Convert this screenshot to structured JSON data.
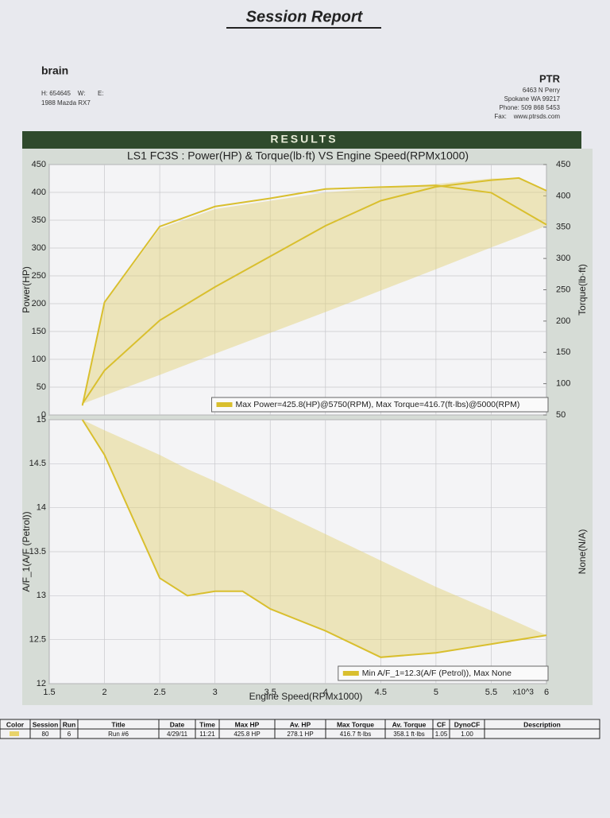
{
  "title": "Session Report",
  "customer": {
    "name": "brain",
    "contact": "H: 654645    W:       E:",
    "vehicle": "1988 Mazda RX7"
  },
  "shop": {
    "name": "PTR",
    "address": "6463 N Perry",
    "city": "Spokane WA 99217",
    "phone": "Phone: 509 868 5453",
    "fax": "Fax:    www.ptrsds.com"
  },
  "banner": "RESULTS",
  "chart_data": [
    {
      "type": "line",
      "title": "LS1 FC3S : Power(HP) & Torque(lb·ft) VS Engine Speed(RPMx1000)",
      "y_label": "Power(HP)",
      "y2_label": "Torque(lb·ft)",
      "xlim": [
        1.5,
        6
      ],
      "xticks": [
        1.5,
        2,
        2.5,
        3,
        3.5,
        4,
        4.5,
        5,
        5.5,
        6
      ],
      "ylim": [
        0,
        450
      ],
      "yticks": [
        0,
        50,
        100,
        150,
        200,
        250,
        300,
        350,
        400,
        450
      ],
      "y2lim": [
        50,
        450
      ],
      "y2ticks": [
        50,
        100,
        150,
        200,
        250,
        300,
        350,
        400,
        450
      ],
      "grid": true,
      "legend": "Max Power=425.8(HP)@5750(RPM), Max Torque=416.7(ft·lbs)@5000(RPM)",
      "band": {
        "color": "#e3d070",
        "x": [
          1.8,
          2,
          2.5,
          3,
          4,
          5,
          5.5,
          5.75,
          6
        ],
        "lower": [
          20,
          35,
          72,
          110,
          185,
          262,
          301,
          320,
          340
        ],
        "upper": [
          20,
          200,
          335,
          370,
          400,
          415,
          425,
          425,
          404
        ]
      },
      "series": [
        {
          "name": "Power",
          "color": "#d9bf2e",
          "x": [
            1.8,
            2,
            2.5,
            3,
            3.5,
            4,
            4.5,
            5,
            5.5,
            5.75,
            6
          ],
          "values": [
            20,
            80,
            170,
            230,
            285,
            340,
            385,
            410,
            422,
            425.8,
            403
          ]
        },
        {
          "name": "Torque",
          "color": "#d9bf2e",
          "axis": "y2",
          "x": [
            1.8,
            2,
            2.5,
            3,
            3.5,
            4,
            4.5,
            5,
            5.5,
            6
          ],
          "values": [
            65,
            230,
            351,
            383,
            396,
            411,
            414,
            416.7,
            405,
            354
          ]
        }
      ]
    },
    {
      "type": "line",
      "title": "",
      "x_label": "Engine Speed(RPMx1000)",
      "x_multiplier": "x10^3",
      "y_label": "A/F_1(A/F (Petrol))",
      "y2_label": "None(N/A)",
      "xlim": [
        1.5,
        6
      ],
      "xticks": [
        1.5,
        2,
        2.5,
        3,
        3.5,
        4,
        4.5,
        5,
        5.5,
        6
      ],
      "ylim": [
        12,
        15
      ],
      "yticks": [
        12,
        12.5,
        13,
        13.5,
        14,
        14.5,
        15
      ],
      "grid": true,
      "legend": "Min A/F_1=12.3(A/F (Petrol)), Max None",
      "band": {
        "color": "#e3d070",
        "x": [
          1.8,
          2,
          2.5,
          2.75,
          3,
          3.25,
          3.5,
          4,
          4.5,
          5,
          5.5,
          6
        ],
        "lower": [
          15,
          14.6,
          13.2,
          13.0,
          13.05,
          13.05,
          12.85,
          12.6,
          12.3,
          12.35,
          12.45,
          12.55
        ],
        "upper": [
          15,
          14.88,
          14.6,
          14.44,
          14.3,
          14.15,
          14.0,
          13.7,
          13.4,
          13.1,
          12.83,
          12.55
        ]
      },
      "series": [
        {
          "name": "A/F_1",
          "color": "#d9bf2e",
          "x": [
            1.8,
            2,
            2.5,
            2.75,
            3,
            3.25,
            3.5,
            4,
            4.5,
            5,
            5.5,
            6
          ],
          "values": [
            15,
            14.6,
            13.2,
            13.0,
            13.05,
            13.05,
            12.85,
            12.6,
            12.3,
            12.35,
            12.45,
            12.55
          ]
        }
      ]
    }
  ],
  "table": {
    "swatch_color": "#e8d36a",
    "headers": [
      "Color",
      "Session",
      "Run",
      "Title",
      "Date",
      "Time",
      "Max HP",
      "Av. HP",
      "Max Torque",
      "Av. Torque",
      "CF",
      "DynoCF",
      "Description"
    ],
    "row": [
      "80",
      "6",
      "Run #6",
      "4/29/11",
      "11:21",
      "425.8 HP",
      "278.1 HP",
      "416.7 ft·lbs",
      "358.1 ft·lbs",
      "1.05",
      "1.00"
    ]
  }
}
